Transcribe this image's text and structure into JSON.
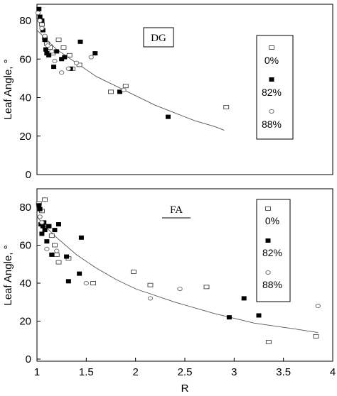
{
  "chart_data": [
    {
      "type": "scatter",
      "panel_label": "DG",
      "ylabel": "Leaf Angle, °",
      "xlim": [
        1,
        4
      ],
      "ylim": [
        0,
        88
      ],
      "yticks": [
        0,
        20,
        40,
        60,
        80
      ],
      "grid": false,
      "legend_position": "right",
      "series": [
        {
          "name": "0%",
          "marker": "open-square",
          "x": [
            1.02,
            1.05,
            1.08,
            1.1,
            1.13,
            1.16,
            1.22,
            1.27,
            1.33,
            1.36,
            1.43,
            1.75,
            1.9,
            2.92
          ],
          "y": [
            82,
            78,
            71,
            68,
            66,
            63,
            70,
            66,
            62,
            55,
            57,
            43,
            46,
            35
          ]
        },
        {
          "name": "82%",
          "marker": "filled-square",
          "x": [
            1.02,
            1.03,
            1.05,
            1.06,
            1.08,
            1.09,
            1.1,
            1.12,
            1.17,
            1.2,
            1.25,
            1.28,
            1.34,
            1.44,
            1.59,
            1.84,
            2.33
          ],
          "y": [
            86,
            82,
            80,
            75,
            70,
            65,
            63,
            62,
            56,
            64,
            60,
            61,
            55,
            69,
            63,
            43,
            30
          ]
        },
        {
          "name": "88%",
          "marker": "open-circle",
          "x": [
            1.01,
            1.03,
            1.05,
            1.08,
            1.11,
            1.15,
            1.18,
            1.25,
            1.32,
            1.4,
            1.55,
            1.88
          ],
          "y": [
            84,
            80,
            76,
            72,
            67,
            64,
            59,
            53,
            55,
            58,
            61,
            44
          ]
        }
      ],
      "fit_curve": {
        "x": [
          1.0,
          1.1,
          1.2,
          1.4,
          1.6,
          1.8,
          2.0,
          2.2,
          2.4,
          2.6,
          2.8,
          2.9
        ],
        "y": [
          75,
          70,
          65,
          58,
          51,
          46,
          41,
          36,
          32,
          28,
          25,
          23
        ]
      }
    },
    {
      "type": "scatter",
      "panel_label": "FA",
      "ylabel": "Leaf Angle, °",
      "xlabel": "R",
      "xlim": [
        1,
        4
      ],
      "ylim": [
        0,
        88
      ],
      "xticks": [
        1,
        1.5,
        2,
        2.5,
        3,
        3.5,
        4
      ],
      "yticks": [
        0,
        20,
        40,
        60,
        80
      ],
      "grid": false,
      "legend_position": "right",
      "series": [
        {
          "name": "0%",
          "marker": "open-square",
          "x": [
            1.02,
            1.05,
            1.08,
            1.12,
            1.15,
            1.18,
            1.2,
            1.22,
            1.32,
            1.57,
            1.98,
            2.15,
            2.72,
            3.35,
            3.83
          ],
          "y": [
            82,
            78,
            84,
            70,
            65,
            60,
            55,
            51,
            53,
            40,
            46,
            39,
            38,
            9,
            12
          ]
        },
        {
          "name": "82%",
          "marker": "filled-square",
          "x": [
            1.02,
            1.03,
            1.04,
            1.05,
            1.06,
            1.07,
            1.08,
            1.1,
            1.12,
            1.15,
            1.18,
            1.22,
            1.3,
            1.32,
            1.43,
            1.45,
            2.95,
            3.1,
            3.25
          ],
          "y": [
            81,
            79,
            71,
            66,
            70,
            72,
            68,
            62,
            70,
            55,
            68,
            71,
            54,
            41,
            45,
            64,
            22,
            32,
            23
          ]
        },
        {
          "name": "88%",
          "marker": "open-circle",
          "x": [
            1.03,
            1.05,
            1.1,
            1.2,
            1.5,
            2.15,
            2.45,
            3.85
          ],
          "y": [
            75,
            72,
            58,
            57,
            40,
            32,
            37,
            28
          ]
        }
      ],
      "fit_curve": {
        "x": [
          1.0,
          1.1,
          1.2,
          1.4,
          1.6,
          1.8,
          2.0,
          2.4,
          2.8,
          3.2,
          3.6,
          3.85
        ],
        "y": [
          75,
          69,
          64,
          55,
          48,
          42,
          37,
          30,
          24,
          19,
          16,
          14
        ]
      }
    }
  ]
}
